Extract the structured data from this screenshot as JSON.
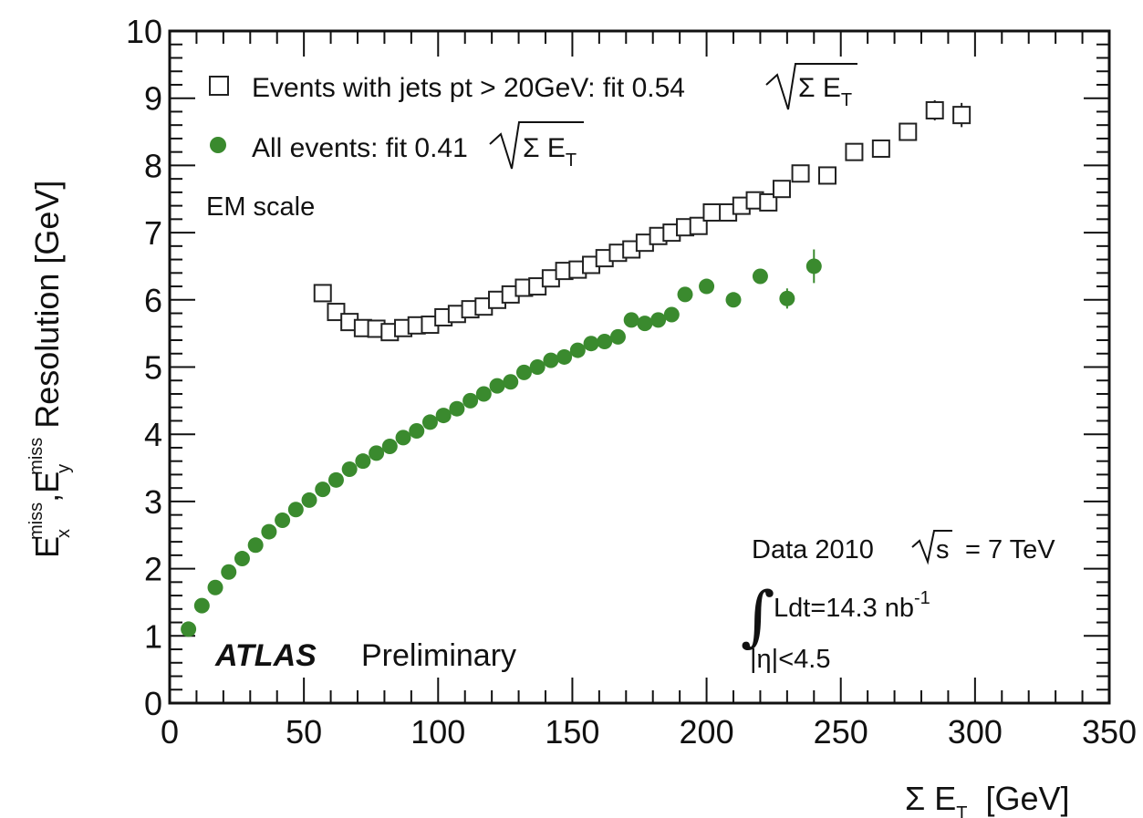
{
  "chart_data": {
    "type": "scatter",
    "xlabel": {
      "main": "Σ E",
      "sub": "T",
      "unit": "[GeV]"
    },
    "ylabel": {
      "e1": "E",
      "e1_sub": "x",
      "e1_sup": "miss",
      "comma": ",",
      "e2": "E",
      "e2_sub": "y",
      "e2_sup": "miss",
      "rest": "Resolution [GeV]"
    },
    "xlim": [
      0,
      350
    ],
    "ylim": [
      0,
      10
    ],
    "xticks": [
      "0",
      "50",
      "100",
      "150",
      "200",
      "250",
      "300",
      "350"
    ],
    "yticks": [
      "0",
      "1",
      "2",
      "3",
      "4",
      "5",
      "6",
      "7",
      "8",
      "9",
      "10"
    ],
    "grid": false,
    "legend_position": "top-left",
    "series": [
      {
        "key": "jets",
        "legend_text": "Events with jets pt > 20GeV: fit 0.54",
        "legend_sqrt": "Σ E",
        "legend_sqrt_sub": "T",
        "marker": "open-square",
        "color": "#222222",
        "x": [
          57,
          62,
          67,
          72,
          77,
          82,
          87,
          92,
          97,
          102,
          107,
          112,
          117,
          122,
          127,
          132,
          137,
          142,
          147,
          152,
          157,
          162,
          167,
          172,
          177,
          182,
          187,
          192,
          197,
          202,
          208,
          213,
          218,
          223,
          228,
          235,
          245,
          255,
          265,
          275,
          285,
          295
        ],
        "y": [
          6.1,
          5.82,
          5.67,
          5.58,
          5.57,
          5.52,
          5.58,
          5.62,
          5.63,
          5.74,
          5.79,
          5.86,
          5.9,
          6.0,
          6.08,
          6.18,
          6.2,
          6.32,
          6.43,
          6.45,
          6.52,
          6.62,
          6.7,
          6.75,
          6.85,
          6.95,
          7.0,
          7.08,
          7.1,
          7.3,
          7.3,
          7.4,
          7.48,
          7.45,
          7.65,
          7.88,
          7.85,
          8.2,
          8.25,
          8.5,
          8.82,
          8.75
        ],
        "yerr": [
          0,
          0,
          0,
          0,
          0,
          0,
          0,
          0,
          0,
          0,
          0,
          0,
          0,
          0,
          0,
          0,
          0,
          0,
          0,
          0,
          0,
          0,
          0,
          0,
          0,
          0,
          0,
          0,
          0,
          0,
          0,
          0,
          0,
          0,
          0,
          0,
          0,
          0,
          0,
          0.08,
          0.15,
          0.18
        ]
      },
      {
        "key": "all",
        "legend_text": "All events: fit 0.41",
        "legend_sqrt": "Σ E",
        "legend_sqrt_sub": "T",
        "marker": "filled-circle",
        "color": "#3a8a2e",
        "x": [
          7,
          12,
          17,
          22,
          27,
          32,
          37,
          42,
          47,
          52,
          57,
          62,
          67,
          72,
          77,
          82,
          87,
          92,
          97,
          102,
          107,
          112,
          117,
          122,
          127,
          132,
          137,
          142,
          147,
          152,
          157,
          162,
          167,
          172,
          177,
          182,
          187,
          192,
          200,
          210,
          220,
          230,
          240
        ],
        "y": [
          1.1,
          1.45,
          1.72,
          1.95,
          2.15,
          2.35,
          2.55,
          2.72,
          2.88,
          3.02,
          3.18,
          3.32,
          3.48,
          3.6,
          3.72,
          3.82,
          3.95,
          4.05,
          4.18,
          4.28,
          4.38,
          4.5,
          4.6,
          4.72,
          4.78,
          4.92,
          5.0,
          5.1,
          5.15,
          5.25,
          5.35,
          5.38,
          5.45,
          5.7,
          5.65,
          5.7,
          5.78,
          6.08,
          6.2,
          6.0,
          6.35,
          6.02,
          6.5
        ],
        "yerr": [
          0,
          0,
          0,
          0,
          0,
          0,
          0,
          0,
          0,
          0,
          0,
          0,
          0,
          0,
          0,
          0,
          0,
          0,
          0,
          0,
          0,
          0,
          0,
          0,
          0,
          0,
          0,
          0,
          0,
          0,
          0,
          0,
          0,
          0,
          0,
          0,
          0,
          0,
          0,
          0,
          0.1,
          0.15,
          0.25
        ]
      }
    ],
    "annotations": {
      "em_scale": "EM scale",
      "data_label": "Data 2010",
      "sqrt_s": "s",
      "energy": "= 7 TeV",
      "lumi": "Ldt=14.3 nb",
      "lumi_sup": "-1",
      "eta": "|η|<4.5",
      "atlas": "ATLAS",
      "preliminary": "Preliminary"
    }
  }
}
